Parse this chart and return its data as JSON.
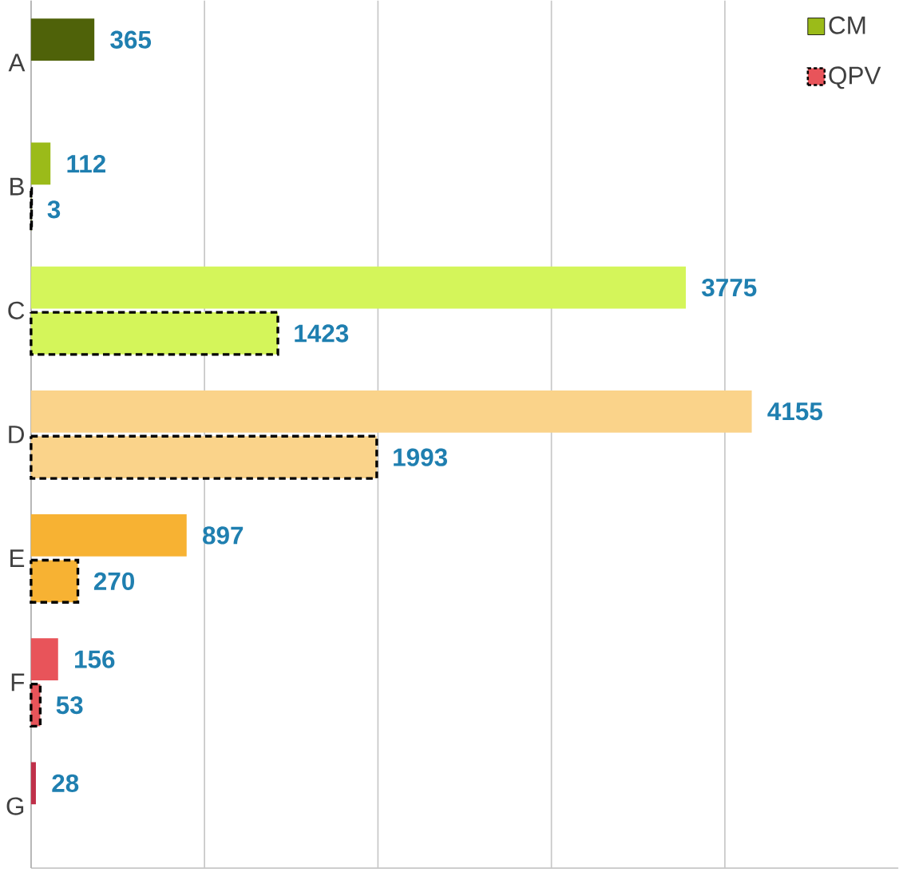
{
  "chart_data": {
    "type": "bar",
    "orientation": "horizontal",
    "categories": [
      "A",
      "B",
      "C",
      "D",
      "E",
      "F",
      "G"
    ],
    "series": [
      {
        "name": "CM",
        "color": "#9bbb19",
        "colors": [
          "#4f6209",
          "#9bbb19",
          "#d4f55a",
          "#fad38a",
          "#f7b233",
          "#e8545a",
          "#c0304a"
        ],
        "values": [
          365,
          112,
          3775,
          4155,
          897,
          156,
          28
        ]
      },
      {
        "name": "QPV",
        "color": "#e8545a",
        "line_style": "dashed",
        "colors": [
          "#4f6209",
          "#9bbb19",
          "#d4f55a",
          "#fad38a",
          "#f7b233",
          "#e8545a",
          "#c0304a"
        ],
        "values": [
          null,
          3,
          1423,
          1993,
          270,
          53,
          null
        ]
      }
    ],
    "xlim": [
      0,
      5000
    ],
    "xticks": [
      {
        "value": 0,
        "label": null
      },
      {
        "value": 1000,
        "label": null
      },
      {
        "value": 2000,
        "label": null
      },
      {
        "value": 3000,
        "label": null
      },
      {
        "value": 4000,
        "label": null
      }
    ],
    "grid": "x",
    "tick_labels": "y",
    "data_labels": true,
    "legend": "top right"
  }
}
